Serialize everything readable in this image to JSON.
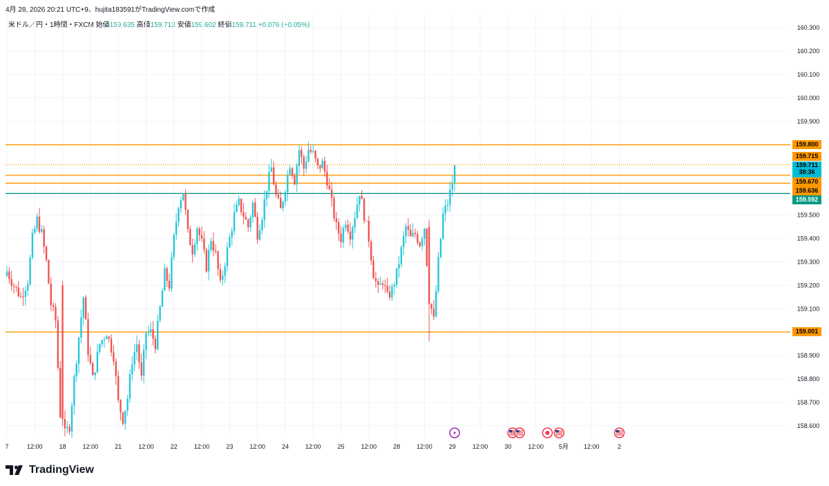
{
  "header": {
    "timestamp_line": "4月 28, 2026 20:21 UTC+9、hujita183591がTradingView.comで作成",
    "symbol": "米ドル／円・1時間・FXCM",
    "open_label": "始値",
    "open_value": "159.635",
    "high_label": "高値",
    "high_value": "159.713",
    "low_label": "安値",
    "low_value": "159.602",
    "close_label": "終値",
    "close_value": "159.711",
    "change": "+0.076 (+0.05%)"
  },
  "brand": {
    "name": "TradingView"
  },
  "colors": {
    "up": "#26c6da",
    "down": "#ef5350",
    "level": "#ff9800",
    "current": "#00bcd4",
    "teal": "#089981",
    "grid": "#f0f3fa",
    "text": "#131722"
  },
  "price_labels": [
    {
      "value": "159.800",
      "kind": "level"
    },
    {
      "value": "159.715",
      "kind": "level"
    },
    {
      "value": "159.711",
      "kind": "current",
      "countdown": "38:36"
    },
    {
      "value": "159.670",
      "kind": "level"
    },
    {
      "value": "159.636",
      "kind": "level"
    },
    {
      "value": "159.592",
      "kind": "teal"
    },
    {
      "value": "159.001",
      "kind": "level"
    }
  ],
  "chart_data": {
    "type": "candlestick",
    "title": "米ドル／円・1時間・FXCM",
    "ylim": [
      158.55,
      160.33
    ],
    "y_ticks": [
      "160.300",
      "160.200",
      "160.100",
      "160.000",
      "159.900",
      "159.800",
      "159.700",
      "159.600",
      "159.500",
      "159.400",
      "159.300",
      "159.200",
      "159.100",
      "159.000",
      "158.900",
      "158.800",
      "158.700",
      "158.600"
    ],
    "x_ticks": [
      {
        "label": "7",
        "bar": 0
      },
      {
        "label": "12:00",
        "bar": 12
      },
      {
        "label": "18",
        "bar": 24
      },
      {
        "label": "12:00",
        "bar": 36
      },
      {
        "label": "21",
        "bar": 48
      },
      {
        "label": "12:00",
        "bar": 60
      },
      {
        "label": "22",
        "bar": 72
      },
      {
        "label": "12:00",
        "bar": 84
      },
      {
        "label": "23",
        "bar": 96
      },
      {
        "label": "12:00",
        "bar": 108
      },
      {
        "label": "24",
        "bar": 120
      },
      {
        "label": "12:00",
        "bar": 132
      },
      {
        "label": "25",
        "bar": 144
      },
      {
        "label": "12:00",
        "bar": 156
      },
      {
        "label": "28",
        "bar": 168
      },
      {
        "label": "12:00",
        "bar": 180
      },
      {
        "label": "29",
        "bar": 192
      },
      {
        "label": "12:00",
        "bar": 204
      },
      {
        "label": "30",
        "bar": 216
      },
      {
        "label": "12:00",
        "bar": 228
      },
      {
        "label": "5月",
        "bar": 240
      },
      {
        "label": "12:00",
        "bar": 252
      },
      {
        "label": "2",
        "bar": 264
      }
    ],
    "horizontal_levels": [
      {
        "price": 159.8,
        "color": "#ff9800",
        "style": "solid"
      },
      {
        "price": 159.715,
        "color": "#ff9800",
        "style": "dotted"
      },
      {
        "price": 159.67,
        "color": "#ff9800",
        "style": "solid"
      },
      {
        "price": 159.636,
        "color": "#ff9800",
        "style": "solid"
      },
      {
        "price": 159.592,
        "color": "#089981",
        "style": "solid"
      },
      {
        "price": 159.001,
        "color": "#ff9800",
        "style": "solid"
      }
    ],
    "anchors": [
      [
        0,
        159.26
      ],
      [
        3,
        159.2
      ],
      [
        6,
        159.15
      ],
      [
        9,
        159.22
      ],
      [
        11,
        159.4
      ],
      [
        13,
        159.48
      ],
      [
        15,
        159.42
      ],
      [
        17,
        159.3
      ],
      [
        19,
        159.12
      ],
      [
        21,
        159.05
      ],
      [
        23,
        158.65
      ],
      [
        24,
        158.55
      ],
      [
        27,
        158.6
      ],
      [
        29,
        158.8
      ],
      [
        31,
        158.98
      ],
      [
        33,
        159.15
      ],
      [
        35,
        158.92
      ],
      [
        37,
        158.8
      ],
      [
        40,
        158.95
      ],
      [
        43,
        159.0
      ],
      [
        46,
        158.9
      ],
      [
        48,
        158.7
      ],
      [
        50,
        158.63
      ],
      [
        52,
        158.72
      ],
      [
        54,
        158.88
      ],
      [
        56,
        158.95
      ],
      [
        58,
        158.8
      ],
      [
        60,
        159.0
      ],
      [
        62,
        159.0
      ],
      [
        64,
        158.95
      ],
      [
        66,
        159.1
      ],
      [
        68,
        159.25
      ],
      [
        70,
        159.2
      ],
      [
        72,
        159.4
      ],
      [
        74,
        159.55
      ],
      [
        76,
        159.6
      ],
      [
        78,
        159.42
      ],
      [
        80,
        159.35
      ],
      [
        82,
        159.45
      ],
      [
        84,
        159.38
      ],
      [
        86,
        159.28
      ],
      [
        88,
        159.4
      ],
      [
        90,
        159.33
      ],
      [
        92,
        159.2
      ],
      [
        94,
        159.3
      ],
      [
        96,
        159.4
      ],
      [
        98,
        159.5
      ],
      [
        100,
        159.55
      ],
      [
        102,
        159.5
      ],
      [
        104,
        159.45
      ],
      [
        106,
        159.55
      ],
      [
        108,
        159.42
      ],
      [
        110,
        159.5
      ],
      [
        112,
        159.62
      ],
      [
        114,
        159.7
      ],
      [
        116,
        159.58
      ],
      [
        118,
        159.52
      ],
      [
        120,
        159.62
      ],
      [
        122,
        159.72
      ],
      [
        124,
        159.65
      ],
      [
        126,
        159.78
      ],
      [
        128,
        159.7
      ],
      [
        130,
        159.78
      ],
      [
        132,
        159.76
      ],
      [
        134,
        159.7
      ],
      [
        136,
        159.72
      ],
      [
        138,
        159.65
      ],
      [
        140,
        159.55
      ],
      [
        142,
        159.45
      ],
      [
        144,
        159.4
      ],
      [
        146,
        159.48
      ],
      [
        148,
        159.42
      ],
      [
        150,
        159.5
      ],
      [
        152,
        159.6
      ],
      [
        154,
        159.5
      ],
      [
        156,
        159.4
      ],
      [
        158,
        159.25
      ],
      [
        160,
        159.18
      ],
      [
        162,
        159.22
      ],
      [
        164,
        159.15
      ],
      [
        166,
        159.18
      ],
      [
        168,
        159.25
      ],
      [
        170,
        159.35
      ],
      [
        172,
        159.45
      ],
      [
        174,
        159.4
      ],
      [
        176,
        159.42
      ],
      [
        178,
        159.38
      ],
      [
        180,
        159.45
      ],
      [
        182,
        159.15
      ],
      [
        184,
        159.05
      ],
      [
        186,
        159.3
      ],
      [
        188,
        159.5
      ],
      [
        190,
        159.55
      ],
      [
        192,
        159.64
      ],
      [
        193,
        159.711
      ]
    ],
    "last_bar": {
      "open": 159.635,
      "high": 159.713,
      "low": 159.602,
      "close": 159.711
    },
    "event_markers": [
      {
        "bar": 193,
        "icon": "lightning"
      },
      {
        "bar": 218,
        "icon": "us-flag"
      },
      {
        "bar": 221,
        "icon": "us-flag"
      },
      {
        "bar": 233,
        "icon": "red-dot"
      },
      {
        "bar": 238,
        "icon": "us-flag"
      },
      {
        "bar": 264,
        "icon": "us-flag"
      }
    ]
  }
}
